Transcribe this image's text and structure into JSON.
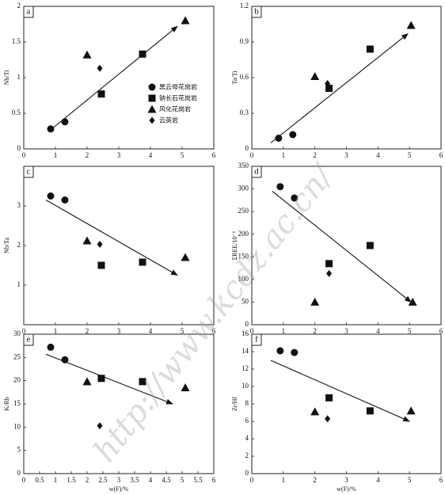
{
  "chart_data": [
    {
      "type": "scatter",
      "panel_label": "a",
      "y_label": "Nb/Ti",
      "xlim": [
        0,
        6
      ],
      "xticks": [
        0,
        1,
        2,
        3,
        4,
        5,
        6
      ],
      "ylim": [
        0,
        2
      ],
      "yticks": [
        0,
        0.5,
        1,
        1.5,
        2
      ],
      "legend": "center right",
      "series": [
        {
          "name": "黑云母花岗岩",
          "marker": "circle",
          "color": "#111111",
          "x": [
            0.85,
            1.3
          ],
          "values": [
            0.28,
            0.38
          ]
        },
        {
          "name": "钠长石花岗岩",
          "marker": "square",
          "color": "#111111",
          "x": [
            2.45,
            3.75
          ],
          "values": [
            0.77,
            1.33
          ]
        },
        {
          "name": "风化花岗岩",
          "marker": "triangle",
          "color": "#111111",
          "x": [
            2.0,
            5.1
          ],
          "values": [
            1.32,
            1.8
          ]
        },
        {
          "name": "云英岩",
          "marker": "diamond",
          "color": "#111111",
          "x": [
            2.4
          ],
          "values": [
            1.13
          ]
        }
      ],
      "trend": {
        "x": [
          0.8,
          4.85
        ],
        "values": [
          0.25,
          1.72
        ]
      }
    },
    {
      "type": "scatter",
      "panel_label": "b",
      "y_label": "Ta/Ti",
      "xlim": [
        0,
        6
      ],
      "xticks": [
        0,
        1,
        2,
        3,
        4,
        5,
        6
      ],
      "ylim": [
        0,
        1.2
      ],
      "yticks": [
        0,
        0.3,
        0.6,
        0.9,
        1.2
      ],
      "series": [
        {
          "marker": "circle",
          "color": "#111111",
          "x": [
            0.85,
            1.3
          ],
          "values": [
            0.09,
            0.12
          ]
        },
        {
          "marker": "square",
          "color": "#111111",
          "x": [
            2.45,
            3.75
          ],
          "values": [
            0.51,
            0.84
          ]
        },
        {
          "marker": "triangle",
          "color": "#111111",
          "x": [
            2.0,
            5.05
          ],
          "values": [
            0.61,
            1.04
          ]
        },
        {
          "marker": "diamond",
          "color": "#111111",
          "x": [
            2.4
          ],
          "values": [
            0.55
          ]
        }
      ],
      "trend": {
        "x": [
          0.6,
          4.95
        ],
        "values": [
          0.05,
          0.97
        ]
      }
    },
    {
      "type": "scatter",
      "panel_label": "c",
      "y_label": "Nb/Ta",
      "xlim": [
        0,
        6
      ],
      "xticks": [
        0,
        1,
        2,
        3,
        4,
        5,
        6
      ],
      "ylim": [
        0,
        4
      ],
      "yticks": [
        1,
        2,
        3
      ],
      "series": [
        {
          "marker": "circle",
          "color": "#111111",
          "x": [
            0.85,
            1.3
          ],
          "values": [
            3.25,
            3.15
          ]
        },
        {
          "marker": "square",
          "color": "#111111",
          "x": [
            2.45,
            3.75
          ],
          "values": [
            1.5,
            1.58
          ]
        },
        {
          "marker": "triangle",
          "color": "#111111",
          "x": [
            2.0,
            5.1
          ],
          "values": [
            2.12,
            1.7
          ]
        },
        {
          "marker": "diamond",
          "color": "#111111",
          "x": [
            2.4
          ],
          "values": [
            2.03
          ]
        }
      ],
      "trend": {
        "x": [
          0.7,
          4.85
        ],
        "values": [
          3.15,
          1.25
        ]
      }
    },
    {
      "type": "scatter",
      "panel_label": "d",
      "y_label": "ΣREE/10⁻⁶",
      "xlim": [
        0,
        6
      ],
      "xticks": [
        0,
        1,
        2,
        3,
        4,
        5,
        6
      ],
      "ylim": [
        0,
        350
      ],
      "yticks": [
        0,
        50,
        100,
        150,
        200,
        250,
        300,
        350
      ],
      "series": [
        {
          "marker": "circle",
          "color": "#111111",
          "x": [
            0.9,
            1.35
          ],
          "values": [
            305,
            280
          ]
        },
        {
          "marker": "square",
          "color": "#111111",
          "x": [
            2.45,
            3.75
          ],
          "values": [
            135,
            175
          ]
        },
        {
          "marker": "triangle",
          "color": "#111111",
          "x": [
            2.0,
            5.1
          ],
          "values": [
            50,
            50
          ]
        },
        {
          "marker": "diamond",
          "color": "#111111",
          "x": [
            2.45
          ],
          "values": [
            113
          ]
        }
      ],
      "trend": {
        "x": [
          0.65,
          5.05
        ],
        "values": [
          295,
          50
        ]
      }
    },
    {
      "type": "scatter",
      "panel_label": "e",
      "y_label": "K/Rb",
      "x_label": "w(F)/%",
      "xlim": [
        0,
        6
      ],
      "xticks": [
        0,
        0.5,
        1,
        1.5,
        2,
        2.5,
        3,
        3.5,
        4,
        4.5,
        5,
        5.5,
        6
      ],
      "ylim": [
        0,
        30
      ],
      "yticks": [
        0,
        5,
        10,
        15,
        20,
        25,
        30
      ],
      "series": [
        {
          "marker": "circle",
          "color": "#111111",
          "x": [
            0.85,
            1.3
          ],
          "values": [
            27.2,
            24.5
          ]
        },
        {
          "marker": "square",
          "color": "#111111",
          "x": [
            2.45,
            3.75
          ],
          "values": [
            20.5,
            19.8
          ]
        },
        {
          "marker": "triangle",
          "color": "#111111",
          "x": [
            2.0,
            5.1
          ],
          "values": [
            19.8,
            18.5
          ]
        },
        {
          "marker": "diamond",
          "color": "#111111",
          "x": [
            2.4
          ],
          "values": [
            10.3
          ]
        }
      ],
      "trend": {
        "x": [
          0.7,
          4.7
        ],
        "values": [
          25.7,
          15
        ]
      }
    },
    {
      "type": "scatter",
      "panel_label": "f",
      "y_label": "Zr/Hf",
      "x_label": "w(F)/%",
      "xlim": [
        0,
        6
      ],
      "xticks": [
        0,
        1,
        2,
        3,
        4,
        5,
        6
      ],
      "ylim": [
        0,
        16
      ],
      "yticks": [
        0,
        2,
        4,
        6,
        8,
        10,
        12,
        14,
        16
      ],
      "series": [
        {
          "marker": "circle",
          "color": "#111111",
          "x": [
            0.9,
            1.35
          ],
          "values": [
            14.1,
            13.9
          ]
        },
        {
          "marker": "square",
          "color": "#111111",
          "x": [
            2.45,
            3.75
          ],
          "values": [
            8.7,
            7.2
          ]
        },
        {
          "marker": "triangle",
          "color": "#111111",
          "x": [
            2.0,
            5.05
          ],
          "values": [
            7.1,
            7.2
          ]
        },
        {
          "marker": "diamond",
          "color": "#111111",
          "x": [
            2.4
          ],
          "values": [
            6.3
          ]
        }
      ],
      "trend": {
        "x": [
          0.6,
          5.0
        ],
        "values": [
          13,
          6
        ]
      }
    }
  ],
  "watermark": "http://www.kcdz.ac.cn/"
}
